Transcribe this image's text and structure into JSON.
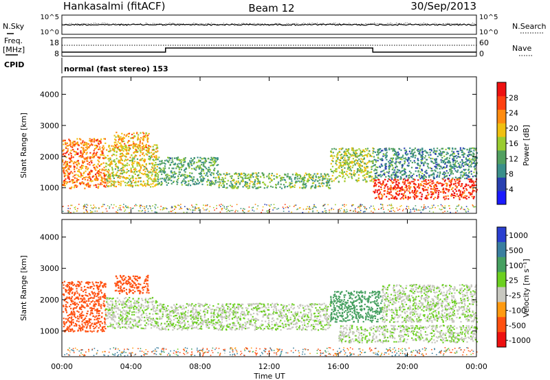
{
  "header": {
    "station": "Hankasalmi (fitACF)",
    "beam": "Beam 12",
    "date": "30/Sep/2013"
  },
  "noise_panel": {
    "left_label": "N.Sky",
    "right_label": "N.Search",
    "left_ticks": [
      "10^5",
      "10^0"
    ],
    "right_ticks": [
      "10^5",
      "10^0"
    ]
  },
  "freq_panel": {
    "left_label_top": "Freq.",
    "left_label_bottom": "[MHz]",
    "right_label": "Nave",
    "left_ticks": [
      "18",
      "8"
    ],
    "right_ticks": [
      "60",
      "0"
    ]
  },
  "cpid_panel": {
    "label": "CPID",
    "mode": "normal (fast stereo) 153"
  },
  "chart_data": [
    {
      "type": "heatmap",
      "title": "",
      "xlabel": "",
      "ylabel": "Slant Range [km]",
      "xlim": [
        0,
        24
      ],
      "ylim": [
        180,
        4560
      ],
      "yticks": [
        1000,
        2000,
        3000,
        4000
      ],
      "colorbar": {
        "label": "Power [dB]",
        "ticks": [
          4,
          8,
          12,
          16,
          20,
          24,
          28
        ],
        "range": [
          0,
          32
        ],
        "colors": [
          "#1a1aff",
          "#2840b0",
          "#3a8f8a",
          "#52a060",
          "#9acc30",
          "#f0c010",
          "#ff8c10",
          "#ff4010",
          "#ee1010"
        ]
      },
      "echo_bands": [
        {
          "t_start": 0.0,
          "t_end": 2.5,
          "range_low": 1000,
          "range_high": 2600,
          "power_db": 24
        },
        {
          "t_start": 2.5,
          "t_end": 5.5,
          "range_low": 1050,
          "range_high": 2400,
          "power_db": 18
        },
        {
          "t_start": 3.0,
          "t_end": 5.0,
          "range_low": 2200,
          "range_high": 2800,
          "power_db": 22
        },
        {
          "t_start": 5.5,
          "t_end": 9.0,
          "range_low": 1100,
          "range_high": 2000,
          "power_db": 12
        },
        {
          "t_start": 9.0,
          "t_end": 15.5,
          "range_low": 1000,
          "range_high": 1500,
          "power_db": 14
        },
        {
          "t_start": 15.5,
          "t_end": 18.0,
          "range_low": 1200,
          "range_high": 2300,
          "power_db": 16
        },
        {
          "t_start": 18.0,
          "t_end": 24.0,
          "range_low": 1300,
          "range_high": 2300,
          "power_db": 10
        },
        {
          "t_start": 18.0,
          "t_end": 24.0,
          "range_low": 650,
          "range_high": 1300,
          "power_db": 28
        }
      ]
    },
    {
      "type": "heatmap",
      "title": "",
      "xlabel": "Time UT",
      "ylabel": "Slant Range [km]",
      "xlim": [
        0,
        24
      ],
      "ylim": [
        180,
        4560
      ],
      "xticks": [
        "00:00",
        "04:00",
        "08:00",
        "12:00",
        "16:00",
        "20:00",
        "00:00"
      ],
      "xtick_hours": [
        0,
        4,
        8,
        12,
        16,
        20,
        24
      ],
      "yticks": [
        1000,
        2000,
        3000,
        4000
      ],
      "colorbar": {
        "label": "Velocity [m s⁻¹]",
        "ticks": [
          "1000",
          "500",
          "100",
          "25",
          "-25",
          "-100",
          "-500",
          "-1000"
        ],
        "colors": [
          "#2a3fd0",
          "#3a7fa0",
          "#46a060",
          "#6cd020",
          "#c8c8c0",
          "#ff9a10",
          "#ff5010",
          "#ee1010"
        ]
      },
      "echo_bands": [
        {
          "t_start": 0.0,
          "t_end": 2.5,
          "range_low": 1000,
          "range_high": 2600,
          "velocity": -200
        },
        {
          "t_start": 3.0,
          "t_end": 5.0,
          "range_low": 2200,
          "range_high": 2800,
          "velocity": -300
        },
        {
          "t_start": 2.5,
          "t_end": 5.5,
          "range_low": 1100,
          "range_high": 2100,
          "velocity": 0
        },
        {
          "t_start": 5.5,
          "t_end": 15.5,
          "range_low": 1050,
          "range_high": 1900,
          "velocity": 0
        },
        {
          "t_start": 15.5,
          "t_end": 18.5,
          "range_low": 1300,
          "range_high": 2300,
          "velocity": 80
        },
        {
          "t_start": 18.5,
          "t_end": 24.0,
          "range_low": 1300,
          "range_high": 2500,
          "velocity": 0
        },
        {
          "t_start": 16.0,
          "t_end": 24.0,
          "range_low": 650,
          "range_high": 1200,
          "velocity": 0
        }
      ]
    }
  ]
}
